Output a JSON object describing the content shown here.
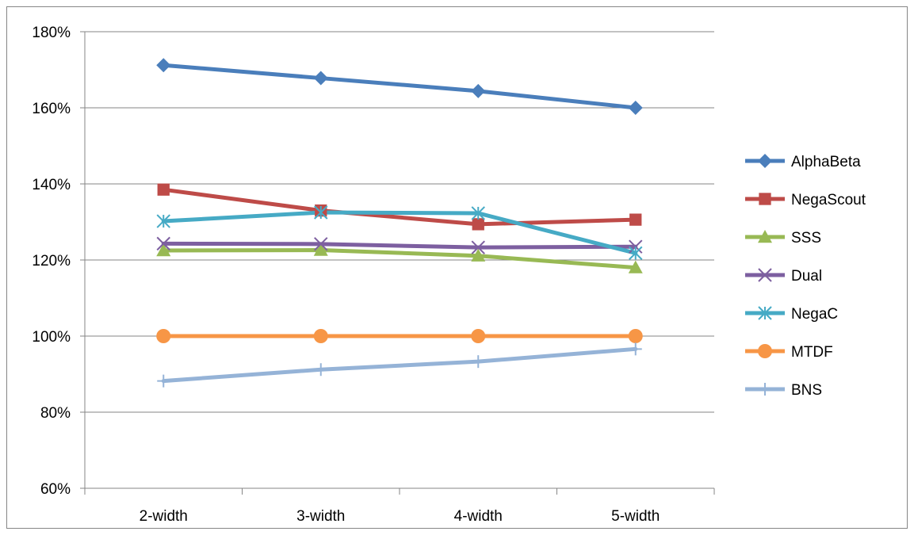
{
  "chart_data": {
    "type": "line",
    "title": "",
    "xlabel": "",
    "ylabel": "",
    "categories": [
      "2-width",
      "3-width",
      "4-width",
      "5-width"
    ],
    "ylim": [
      60,
      180
    ],
    "y_ticks": [
      60,
      80,
      100,
      120,
      140,
      160,
      180
    ],
    "y_tick_format": "percent",
    "grid": "horizontal",
    "legend": "right",
    "series": [
      {
        "name": "AlphaBeta",
        "values": [
          171.2,
          167.8,
          164.4,
          160.0
        ],
        "color": "#4A7EBB",
        "marker": "diamond"
      },
      {
        "name": "NegaScout",
        "values": [
          138.5,
          133.0,
          129.4,
          130.6
        ],
        "color": "#BE4B48",
        "marker": "square"
      },
      {
        "name": "SSS",
        "values": [
          122.5,
          122.6,
          121.1,
          118.0
        ],
        "color": "#98B954",
        "marker": "triangle"
      },
      {
        "name": "Dual",
        "values": [
          124.3,
          124.2,
          123.3,
          123.5
        ],
        "color": "#7D5FA0",
        "marker": "x"
      },
      {
        "name": "NegaC",
        "values": [
          130.2,
          132.5,
          132.3,
          121.8
        ],
        "color": "#46AAC5",
        "marker": "star"
      },
      {
        "name": "MTDF",
        "values": [
          100.0,
          100.0,
          100.0,
          100.0
        ],
        "color": "#F79646",
        "marker": "circle"
      },
      {
        "name": "BNS",
        "values": [
          88.2,
          91.2,
          93.3,
          96.6
        ],
        "color": "#95B3D7",
        "marker": "plus"
      }
    ]
  }
}
